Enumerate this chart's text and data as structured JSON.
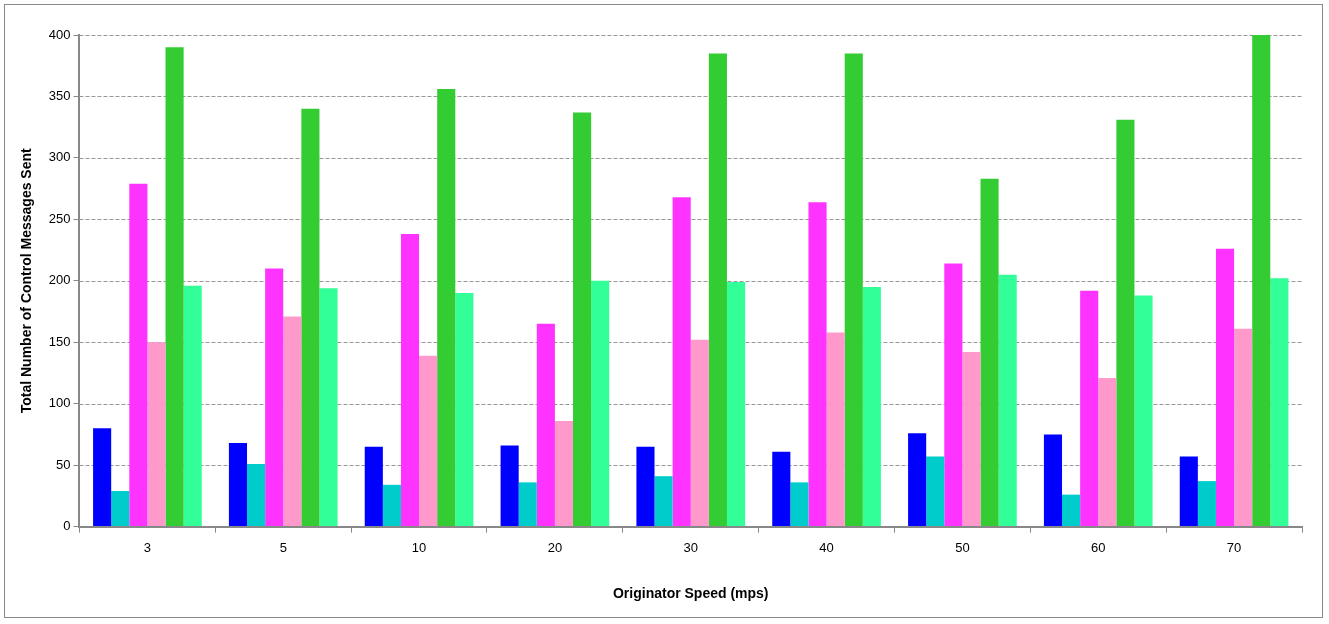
{
  "chart_data": {
    "type": "bar",
    "xlabel": "Originator Speed (mps)",
    "ylabel": "Total Number of Control Messages Sent",
    "categories": [
      "3",
      "5",
      "10",
      "20",
      "30",
      "40",
      "50",
      "60",
      "70"
    ],
    "series": [
      {
        "color": "#0000ff",
        "values": [
          80,
          68,
          65,
          66,
          65,
          61,
          76,
          75,
          57
        ]
      },
      {
        "color": "#00cccc",
        "values": [
          29,
          51,
          34,
          36,
          41,
          36,
          57,
          26,
          37
        ]
      },
      {
        "color": "#ff33ff",
        "values": [
          279,
          210,
          238,
          165,
          268,
          264,
          214,
          192,
          226
        ]
      },
      {
        "color": "#ff99cc",
        "values": [
          150,
          171,
          139,
          86,
          152,
          158,
          142,
          121,
          161
        ]
      },
      {
        "color": "#33cc33",
        "values": [
          390,
          340,
          356,
          337,
          385,
          385,
          283,
          331,
          400
        ]
      },
      {
        "color": "#33ff99",
        "values": [
          196,
          194,
          190,
          200,
          199,
          195,
          205,
          188,
          202
        ]
      }
    ],
    "ylim": [
      0,
      400
    ],
    "yticks": [
      0,
      50,
      100,
      150,
      200,
      250,
      300,
      350,
      400
    ],
    "grid": "y",
    "legend": false
  }
}
